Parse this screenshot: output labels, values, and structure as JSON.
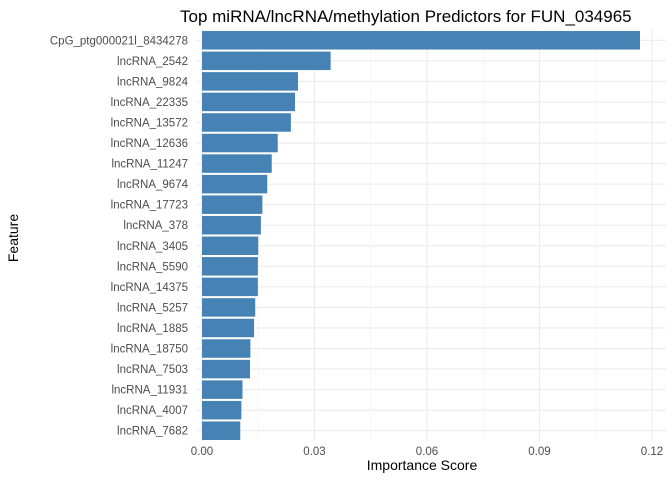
{
  "chart_data": {
    "type": "bar",
    "orientation": "horizontal",
    "title": "Top miRNA/lncRNA/methylation Predictors for FUN_034965",
    "xlabel": "Importance Score",
    "ylabel": "Feature",
    "xlim": [
      0,
      0.12
    ],
    "xticks": [
      0.0,
      0.03,
      0.06,
      0.09,
      0.12
    ],
    "xtick_labels": [
      "0.00",
      "0.03",
      "0.06",
      "0.09",
      "0.12"
    ],
    "grid": true,
    "bar_color": "#4682b4",
    "categories": [
      "CpG_ptg000021l_8434278",
      "lncRNA_2542",
      "lncRNA_9824",
      "lncRNA_22335",
      "lncRNA_13572",
      "lncRNA_12636",
      "lncRNA_11247",
      "lncRNA_9674",
      "lncRNA_17723",
      "lncRNA_378",
      "lncRNA_3405",
      "lncRNA_5590",
      "lncRNA_14375",
      "lncRNA_5257",
      "lncRNA_1885",
      "lncRNA_18750",
      "lncRNA_7503",
      "lncRNA_11931",
      "lncRNA_4007",
      "lncRNA_7682"
    ],
    "values": [
      0.1168,
      0.0343,
      0.0256,
      0.0248,
      0.0237,
      0.0202,
      0.0186,
      0.0174,
      0.0161,
      0.0157,
      0.015,
      0.0149,
      0.0149,
      0.0142,
      0.0139,
      0.0129,
      0.0128,
      0.0108,
      0.0105,
      0.0102
    ]
  }
}
